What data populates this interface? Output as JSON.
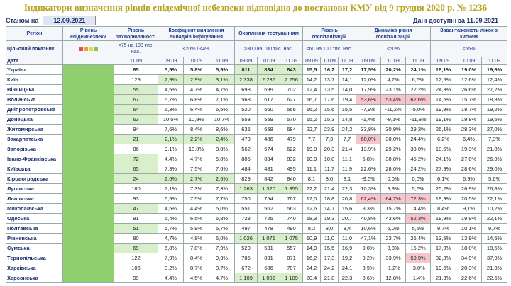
{
  "header": {
    "title": "Індикатори визначення рівнів епідемічної небезпеки відповідно до постанови КМУ від 9 грудня 2020 р. № 1236",
    "as_of_label": "Станом на",
    "as_of_date": "12.09.2021",
    "available": "Дані доступні за 11.09.2021"
  },
  "table": {
    "columns": [
      "Регіон",
      "Рівень епідембезпеки",
      "Рівень захворюваності",
      "Коефіцієнт виявлення випадків інфікування",
      "Охоплення тестуванням",
      "Рівень госпіталізацій",
      "Динаміка рівня госпіталізацій",
      "Завантаженість ліжок з киснем"
    ],
    "target_label": "Цільовий показник",
    "targets": [
      "<75 на 100 тис. нас.",
      "≤20% / ≤4%",
      "≥300 на 100 тис. нас.",
      "≤60 на 100 тис. нас.",
      "≤50%",
      "≤65%"
    ],
    "date_label": "Дата",
    "dates": [
      "11.09",
      "09.09",
      "10.09",
      "11.09",
      "09.09",
      "10.09",
      "11.09",
      "09.09",
      "10.09",
      "11.09",
      "09.09",
      "10.09",
      "11.09",
      "09.09",
      "10.09",
      "11.09"
    ],
    "rows": [
      [
        "Україна",
        "85",
        "5,5%",
        "5,8%",
        "5,9%",
        {
          "text": "811",
          "color": "#d9efcc"
        },
        {
          "text": "834",
          "color": "#d9efcc"
        },
        {
          "text": "843",
          "color": "#d9efcc"
        },
        "15,5",
        "16,2",
        "17,2",
        "17,5%",
        "20,2%",
        "24,1%",
        "18,1%",
        "19,0%",
        "19,6%"
      ],
      [
        "Київ",
        "129",
        {
          "text": "2,9%",
          "color": "#d9efcc"
        },
        {
          "text": "2,9%",
          "color": "#d9efcc"
        },
        {
          "text": "3,1%",
          "color": "#d9efcc"
        },
        {
          "text": "2 338",
          "color": "#d9efcc"
        },
        {
          "text": "2 236",
          "color": "#d9efcc"
        },
        {
          "text": "2 256",
          "color": "#d9efcc"
        },
        "14,2",
        "13,7",
        "14,1",
        "12,0%",
        "4,7%",
        "6,6%",
        "12,5%",
        "12,6%",
        "12,4%"
      ],
      [
        "Вінницька",
        {
          "text": "55",
          "color": "#d9efcc"
        },
        "4,5%",
        "4,7%",
        "4,7%",
        "698",
        "699",
        "702",
        "12,4",
        "13,5",
        "14,0",
        "17,9%",
        "23,1%",
        "22,2%",
        "24,3%",
        "26,6%",
        "27,2%"
      ],
      [
        "Волинська",
        {
          "text": "67",
          "color": "#d9efcc"
        },
        "6,7%",
        "6,8%",
        "7,1%",
        "568",
        "617",
        "627",
        "16,7",
        "17,6",
        "19,4",
        {
          "text": "53,6%",
          "color": "#f6c6cc"
        },
        {
          "text": "53,4%",
          "color": "#f6c6cc"
        },
        {
          "text": "62,6%",
          "color": "#f6c6cc"
        },
        "14,5%",
        "15,7%",
        "18,8%"
      ],
      [
        "Дніпропетровська",
        {
          "text": "64",
          "color": "#d9efcc"
        },
        "6,3%",
        "6,4%",
        "6,5%",
        "520",
        "560",
        "566",
        "16,2",
        "15,6",
        "15,5",
        "-7,9%",
        "-11,2%",
        "-5,0%",
        "19,9%",
        "18,7%",
        "19,2%"
      ],
      [
        "Донецька",
        {
          "text": "63",
          "color": "#d9efcc"
        },
        "10,5%",
        "10,9%",
        "10,7%",
        "553",
        "559",
        "570",
        "15,2",
        "15,3",
        "14,8",
        "-1,4%",
        "-9,1%",
        "-11,8%",
        "19,1%",
        "19,8%",
        "19,5%"
      ],
      [
        "Житомирська",
        "94",
        "7,6%",
        "8,4%",
        "8,6%",
        "635",
        "658",
        "684",
        "22,7",
        "23,9",
        "24,2",
        "33,8%",
        "30,9%",
        "29,3%",
        "26,1%",
        "28,3%",
        "27,0%"
      ],
      [
        "Закарпатська",
        {
          "text": "21",
          "color": "#d9efcc"
        },
        {
          "text": "2,1%",
          "color": "#d9efcc"
        },
        {
          "text": "2,2%",
          "color": "#d9efcc"
        },
        {
          "text": "2,4%",
          "color": "#d9efcc"
        },
        "473",
        "486",
        "479",
        "7,7",
        "7,3",
        "7,7",
        {
          "text": "60,0%",
          "color": "#f6c6cc"
        },
        "30,0%",
        "24,4%",
        "6,2%",
        "6,4%",
        "7,3%"
      ],
      [
        "Запорізька",
        "86",
        "9,1%",
        "10,0%",
        "8,8%",
        "562",
        "574",
        "622",
        "19,0",
        "20,3",
        "21,4",
        "13,9%",
        "29,2%",
        "33,0%",
        "18,5%",
        "19,3%",
        "21,0%"
      ],
      [
        "Івано-Франківська",
        {
          "text": "72",
          "color": "#d9efcc"
        },
        "4,4%",
        "4,7%",
        "5,0%",
        "805",
        "834",
        "832",
        "10,0",
        "10,8",
        "11,1",
        "5,8%",
        "30,8%",
        "45,2%",
        "24,1%",
        "27,0%",
        "26,9%"
      ],
      [
        "Київська",
        {
          "text": "65",
          "color": "#d9efcc"
        },
        "7,3%",
        "7,5%",
        "7,6%",
        "484",
        "481",
        "495",
        "11,1",
        "11,7",
        "11,9",
        "22,6%",
        "28,0%",
        "24,2%",
        "27,9%",
        "28,6%",
        "29,0%"
      ],
      [
        "Кіровоградська",
        {
          "text": "24",
          "color": "#d9efcc"
        },
        {
          "text": "2,6%",
          "color": "#d9efcc"
        },
        {
          "text": "2,7%",
          "color": "#d9efcc"
        },
        {
          "text": "2,6%",
          "color": "#d9efcc"
        },
        "829",
        "842",
        "840",
        "8,1",
        "8,0",
        "8,1",
        "-9,5%",
        "0,0%",
        "0,0%",
        "6,1%",
        "6,9%",
        "5,6%"
      ],
      [
        "Луганська",
        "180",
        "7,1%",
        "7,3%",
        "7,3%",
        {
          "text": "1 263",
          "color": "#d9efcc"
        },
        {
          "text": "1 320",
          "color": "#d9efcc"
        },
        {
          "text": "1 355",
          "color": "#d9efcc"
        },
        "22,2",
        "21,4",
        "22,3",
        "10,3%",
        "9,9%",
        "5,6%",
        "25,2%",
        "26,9%",
        "26,8%"
      ],
      [
        "Львівська",
        "93",
        "6,5%",
        "7,5%",
        "7,7%",
        "750",
        "754",
        "767",
        "17,0",
        "18,8",
        "20,8",
        {
          "text": "62,4%",
          "color": "#f6c6cc"
        },
        {
          "text": "64,7%",
          "color": "#f6c6cc"
        },
        {
          "text": "72,3%",
          "color": "#f6c6cc"
        },
        "18,9%",
        "20,5%",
        "22,1%"
      ],
      [
        "Миколаївська",
        {
          "text": "47",
          "color": "#d9efcc"
        },
        "4,5%",
        "4,4%",
        "5,0%",
        "551",
        "562",
        "563",
        "12,6",
        "14,7",
        "15,6",
        "8,3%",
        "15,7%",
        "14,4%",
        "8,4%",
        "9,1%",
        "10,2%"
      ],
      [
        "Одеська",
        "91",
        "6,4%",
        "6,5%",
        "6,8%",
        "728",
        "725",
        "740",
        "18,3",
        "19,3",
        "20,7",
        "40,8%",
        "43,6%",
        {
          "text": "52,3%",
          "color": "#f6c6cc"
        },
        "18,9%",
        "19,9%",
        "22,1%"
      ],
      [
        "Полтавська",
        {
          "text": "51",
          "color": "#d9efcc"
        },
        "5,7%",
        "5,9%",
        "5,7%",
        "497",
        "478",
        "490",
        "8,2",
        "8,0",
        "8,4",
        "10,6%",
        "6,0%",
        "5,5%",
        "9,7%",
        "10,1%",
        "9,7%"
      ],
      [
        "Рівненська",
        "80",
        "4,7%",
        "4,8%",
        "5,0%",
        {
          "text": "1 026",
          "color": "#d9efcc"
        },
        {
          "text": "1 071",
          "color": "#d9efcc"
        },
        {
          "text": "1 075",
          "color": "#d9efcc"
        },
        "10,9",
        "11,0",
        "11,0",
        "47,1%",
        "23,7%",
        "26,4%",
        "13,5%",
        "13,9%",
        "14,6%"
      ],
      [
        "Сумська",
        {
          "text": "69",
          "color": "#d9efcc"
        },
        "6,8%",
        "7,8%",
        "7,9%",
        "520",
        "531",
        "557",
        "14,9",
        "15,5",
        "16,9",
        "9,0%",
        "8,8%",
        "16,2%",
        "17,9%",
        "18,0%",
        "18,5%"
      ],
      [
        "Тернопільська",
        "122",
        "7,9%",
        "8,4%",
        "9,3%",
        "785",
        "831",
        "871",
        "16,2",
        "17,3",
        "19,2",
        "9,2%",
        "33,9%",
        {
          "text": "50,9%",
          "color": "#f6c6cc"
        },
        "32,3%",
        "34,9%",
        "37,9%"
      ],
      [
        "Харківська",
        "106",
        "8,2%",
        "8,7%",
        "8,7%",
        "672",
        "686",
        "707",
        "24,2",
        "24,2",
        "24,1",
        "3,9%",
        "-1,2%",
        "-3,0%",
        "19,5%",
        "20,3%",
        "21,9%"
      ],
      [
        "Херсонська",
        "99",
        "4,4%",
        "4,5%",
        "4,7%",
        {
          "text": "1 109",
          "color": "#d9efcc"
        },
        {
          "text": "1 092",
          "color": "#d9efcc"
        },
        {
          "text": "1 109",
          "color": "#d9efcc"
        },
        "20,4",
        "21,8",
        "22,3",
        "8,6%",
        "12,8%",
        "-1,4%",
        "21,3%",
        "22,6%",
        "22,6%"
      ]
    ]
  }
}
